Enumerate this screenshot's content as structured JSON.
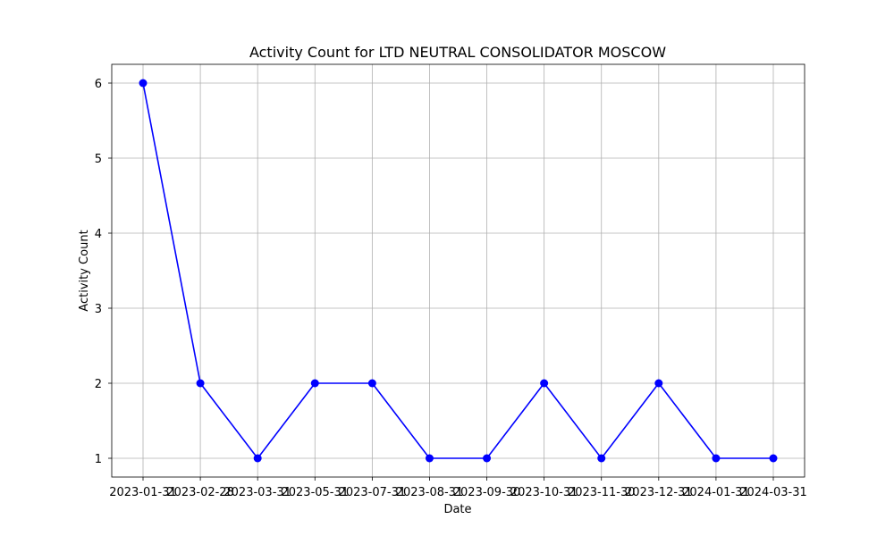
{
  "chart_data": {
    "type": "line",
    "title": "Activity Count for LTD NEUTRAL CONSOLIDATOR MOSCOW",
    "xlabel": "Date",
    "ylabel": "Activity Count",
    "x": [
      "2023-01-31",
      "2023-02-28",
      "2023-03-31",
      "2023-05-31",
      "2023-07-31",
      "2023-08-31",
      "2023-09-30",
      "2023-10-31",
      "2023-11-30",
      "2023-12-31",
      "2024-01-31",
      "2024-03-31"
    ],
    "series": [
      {
        "values": [
          6,
          2,
          1,
          2,
          2,
          1,
          1,
          2,
          1,
          2,
          1,
          1
        ],
        "color": "#0000ff",
        "marker": "circle"
      }
    ],
    "yticks": [
      1,
      2,
      3,
      4,
      5,
      6
    ],
    "ylim": [
      0.75,
      6.25
    ],
    "grid": true
  }
}
